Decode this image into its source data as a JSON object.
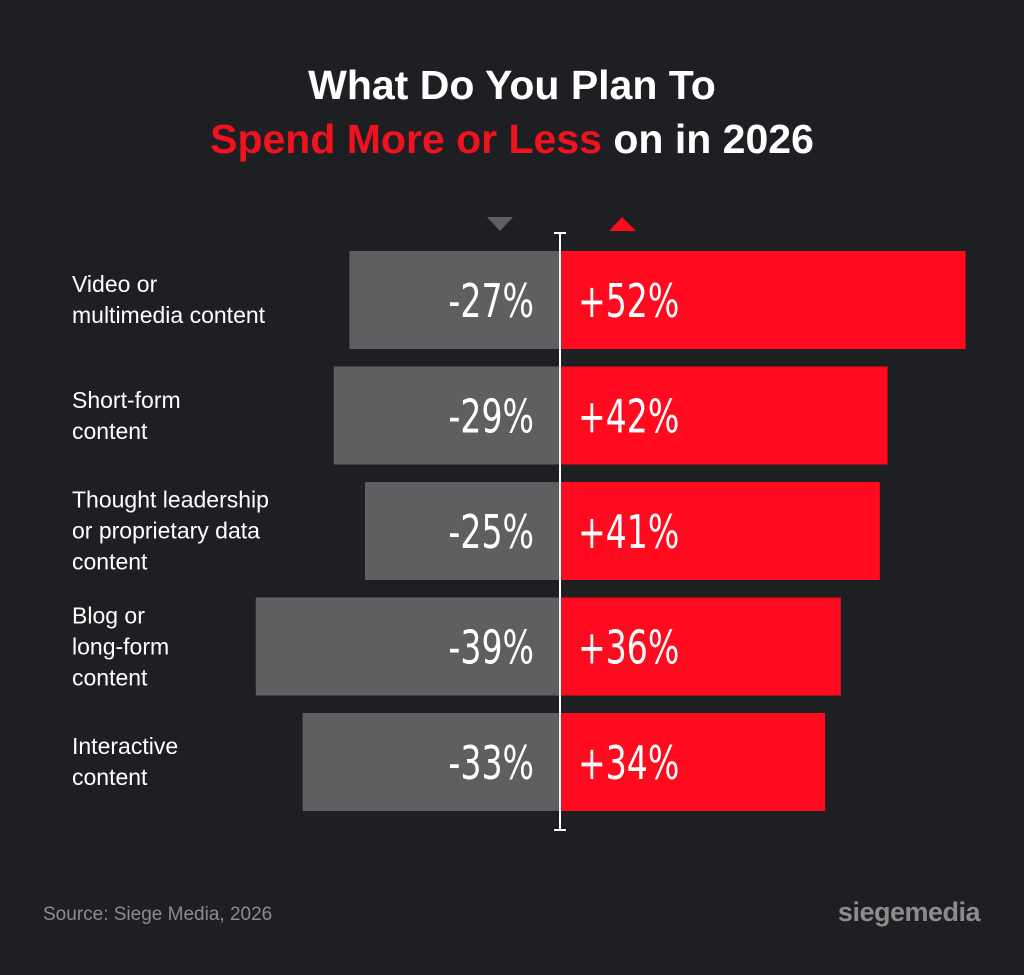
{
  "title": {
    "line1": "What Do You Plan To",
    "line2_highlight": "Spend More or Less",
    "line2_rest": " on in 2026"
  },
  "colors": {
    "background": "#1e1f22",
    "less": "#5f5f61",
    "more": "#ff0a1f",
    "accent_text": "#f0121f"
  },
  "chart_data": {
    "type": "bar",
    "orientation": "diverging-horizontal",
    "categories": [
      "Video or\nmultimedia content",
      "Short-form\ncontent",
      "Thought leadership\nor proprietary data\ncontent",
      "Blog or\nlong-form\ncontent",
      "Interactive\ncontent"
    ],
    "series": [
      {
        "name": "",
        "direction": "down",
        "values": [
          -27,
          -29,
          -25,
          -39,
          -33
        ],
        "labels": [
          "-27%",
          "-29%",
          "-25%",
          "-39%",
          "-33%"
        ]
      },
      {
        "name": "",
        "direction": "up",
        "values": [
          52,
          42,
          41,
          36,
          34
        ],
        "labels": [
          "+52%",
          "+42%",
          "+41%",
          "+36%",
          "+34%"
        ]
      }
    ],
    "xlim": [
      -40,
      52
    ],
    "grid": false,
    "legend": "top-center, down/up triangle markers"
  },
  "footer": {
    "source": "Source: Siege Media, 2026",
    "brand": "siegemedia"
  }
}
